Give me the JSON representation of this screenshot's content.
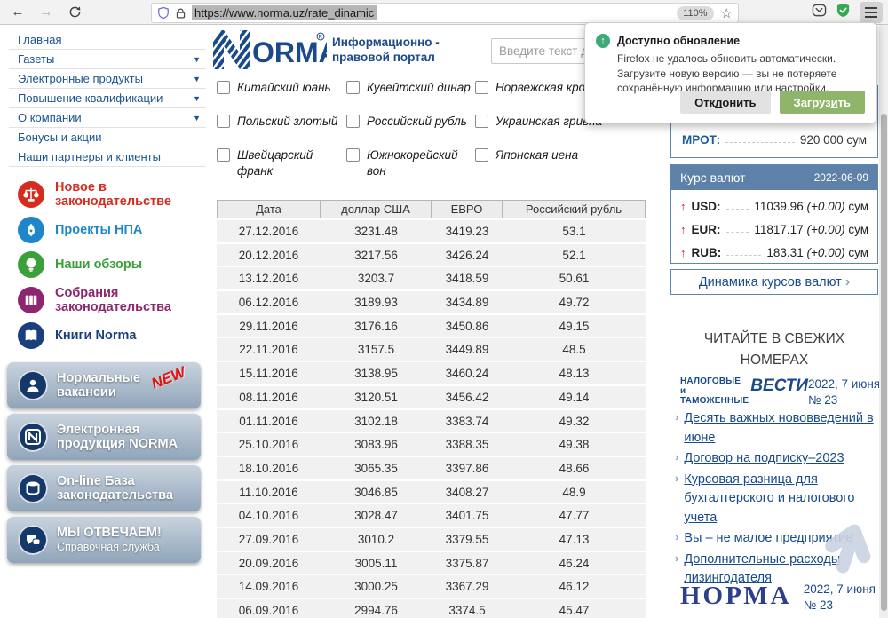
{
  "icons": {
    "dropdown": "▼",
    "arrow_up": "↑",
    "chevron": "›",
    "back": "←",
    "forward": "→",
    "star": "☆"
  },
  "browser": {
    "url": "https://www.norma.uz/rate_dinamic",
    "zoom_level": "110%"
  },
  "popup": {
    "title": "Доступно обновление",
    "body": "Firefox не удалось обновить автоматически. Загрузите новую версию — вы не потеряете сохранённую информацию или настройки.",
    "dismiss": {
      "pre": "Отк",
      "key": "л",
      "post": "онить"
    },
    "download": {
      "pre": "Загруз",
      "key": "и",
      "post": "ть"
    }
  },
  "sidebar": {
    "menu": [
      {
        "label": "Главная",
        "arrow": false
      },
      {
        "label": "Газеты",
        "arrow": true
      },
      {
        "label": "Электронные продукты",
        "arrow": true
      },
      {
        "label": "Повышение квалификации",
        "arrow": true
      },
      {
        "label": "О компании",
        "arrow": true
      },
      {
        "label": "Бонусы и акции",
        "arrow": false
      },
      {
        "label": "Наши партнеры и клиенты",
        "arrow": false
      }
    ],
    "quick_links": [
      {
        "label": "Новое в законодательстве",
        "color": "#d62b1f",
        "icon": "scales"
      },
      {
        "label": "Проекты НПА",
        "color": "#1f86c9",
        "icon": "pen"
      },
      {
        "label": "Наши обзоры",
        "color": "#3aa03a",
        "icon": "bulb"
      },
      {
        "label": "Собрания законодательства",
        "color": "#8e2570",
        "icon": "books"
      },
      {
        "label": "Книги Norma",
        "color": "#1b3f7c",
        "icon": "book"
      }
    ],
    "banners": [
      {
        "title": "Нормальные вакансии",
        "badge": "NEW",
        "icon": "person"
      },
      {
        "title": "Электронная продукция NORMA",
        "icon": "n-square"
      },
      {
        "title": "On-line База законодательства",
        "icon": "database"
      },
      {
        "title": "МЫ ОТВЕЧАЕМ!",
        "subtitle": "Справочная служба",
        "icon": "chat"
      }
    ]
  },
  "header": {
    "logo_text": "ORMA",
    "tagline": "Информационно - правовой портал",
    "search_placeholder": "Введите текст для поиска"
  },
  "currencies_filter": [
    "Китайский юань",
    "Кувейтский динар",
    "Норвежская крона",
    "Польский злотый",
    "Российский рубль",
    "Украинская гривна",
    "Швейцарский франк",
    "Южнокорейский вон",
    "Японская иена"
  ],
  "rates_table": {
    "columns": [
      "Дата",
      "доллар США",
      "ЕВРО",
      "Российский рубль"
    ],
    "rows": [
      [
        "27.12.2016",
        "3231.48",
        "3419.23",
        "53.1"
      ],
      [
        "20.12.2016",
        "3217.56",
        "3426.24",
        "52.1"
      ],
      [
        "13.12.2016",
        "3203.7",
        "3418.59",
        "50.61"
      ],
      [
        "06.12.2016",
        "3189.93",
        "3434.89",
        "49.72"
      ],
      [
        "29.11.2016",
        "3176.16",
        "3450.86",
        "49.15"
      ],
      [
        "22.11.2016",
        "3157.5",
        "3449.89",
        "48.5"
      ],
      [
        "15.11.2016",
        "3138.95",
        "3460.24",
        "48.13"
      ],
      [
        "08.11.2016",
        "3120.51",
        "3456.42",
        "49.14"
      ],
      [
        "01.11.2016",
        "3102.18",
        "3383.74",
        "49.32"
      ],
      [
        "25.10.2016",
        "3083.96",
        "3388.35",
        "49.38"
      ],
      [
        "18.10.2016",
        "3065.35",
        "3397.86",
        "48.66"
      ],
      [
        "11.10.2016",
        "3046.85",
        "3408.27",
        "48.9"
      ],
      [
        "04.10.2016",
        "3028.47",
        "3401.75",
        "47.77"
      ],
      [
        "27.09.2016",
        "3010.2",
        "3379.55",
        "47.13"
      ],
      [
        "20.09.2016",
        "3005.11",
        "3375.87",
        "46.24"
      ],
      [
        "14.09.2016",
        "3000.25",
        "3367.29",
        "46.12"
      ],
      [
        "06.09.2016",
        "2994.76",
        "3374.5",
        "45.47"
      ]
    ]
  },
  "right_panel": {
    "mrot_label": "МРОТ:",
    "mrot_value": "920 000 сум",
    "rates_widget": {
      "title": "Курс валют",
      "date": "2022-06-09",
      "rows": [
        {
          "code": "USD:",
          "value": "11039.96",
          "delta": "(+0.00)",
          "unit": "сум"
        },
        {
          "code": "EUR:",
          "value": "11817.17",
          "delta": "(+0.00)",
          "unit": "сум"
        },
        {
          "code": "RUB:",
          "value": "183.31",
          "delta": "(+0.00)",
          "unit": "сум"
        }
      ],
      "link": "Динамика курсов валют"
    },
    "fresh_issues": {
      "heading_line1": "ЧИТАЙТЕ В СВЕЖИХ",
      "heading_line2": "НОМЕРАХ",
      "issue1": {
        "logo_line1": "НАЛОГОВЫЕ и",
        "logo_line2": "ТАМОЖЕННЫЕ",
        "logo_word": "ВЕСТИ",
        "date": "2022, 7 июня",
        "number": "№ 23"
      },
      "links": [
        "Десять важных нововведений в июне",
        "Договор на подписку–2023",
        "Курсовая разница для бухгалтерского и налогового учета",
        "Вы – не малое предприятие",
        "Дополнительные расходы лизингодателя"
      ],
      "issue2": {
        "logo": "НОРМА",
        "date": "2022, 7 июня",
        "number": "№ 23"
      }
    }
  }
}
